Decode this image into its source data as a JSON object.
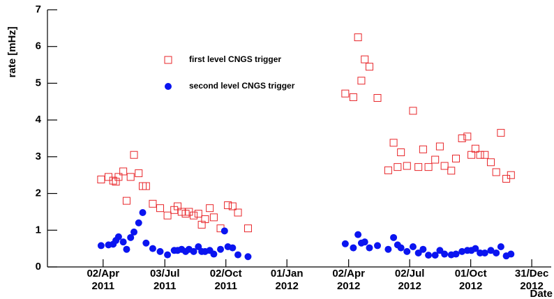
{
  "chart_data": {
    "type": "scatter",
    "ylabel": "rate [mHz]",
    "xlabel": "Date",
    "x": [
      "2011-03-30",
      "2011-04-10",
      "2011-04-17",
      "2011-04-21",
      "2011-04-25",
      "2011-05-02",
      "2011-05-07",
      "2011-05-13",
      "2011-05-18",
      "2011-05-25",
      "2011-05-31",
      "2011-06-05",
      "2011-06-15",
      "2011-06-26",
      "2011-07-07",
      "2011-07-17",
      "2011-07-22",
      "2011-07-28",
      "2011-08-03",
      "2011-08-08",
      "2011-08-15",
      "2011-08-22",
      "2011-08-27",
      "2011-09-01",
      "2011-09-08",
      "2011-09-14",
      "2011-09-24",
      "2011-09-30",
      "2011-10-05",
      "2011-10-12",
      "2011-10-20",
      "2011-11-04",
      "2012-03-28",
      "2012-04-09",
      "2012-04-16",
      "2012-04-21",
      "2012-04-26",
      "2012-05-03",
      "2012-05-15",
      "2012-05-31",
      "2012-06-08",
      "2012-06-14",
      "2012-06-19",
      "2012-06-28",
      "2012-07-07",
      "2012-07-15",
      "2012-07-22",
      "2012-07-30",
      "2012-08-09",
      "2012-08-16",
      "2012-08-23",
      "2012-09-02",
      "2012-09-09",
      "2012-09-18",
      "2012-09-26",
      "2012-10-02",
      "2012-10-08",
      "2012-10-15",
      "2012-10-22",
      "2012-10-31",
      "2012-11-08",
      "2012-11-15",
      "2012-11-23",
      "2012-11-30"
    ],
    "series": [
      {
        "name": "first level CNGS trigger",
        "color": "#e8262a",
        "marker": "square-open",
        "values": [
          2.38,
          2.45,
          2.35,
          2.32,
          2.45,
          2.6,
          1.8,
          2.45,
          3.05,
          2.55,
          2.2,
          2.2,
          1.72,
          1.6,
          1.4,
          1.55,
          1.65,
          1.5,
          1.45,
          1.5,
          1.4,
          1.45,
          1.15,
          1.3,
          1.6,
          1.35,
          1.05,
          null,
          1.68,
          1.65,
          1.48,
          1.05,
          4.72,
          4.62,
          6.25,
          5.07,
          5.65,
          5.45,
          4.6,
          2.63,
          3.38,
          2.72,
          3.12,
          2.75,
          4.25,
          2.72,
          3.2,
          2.72,
          2.92,
          3.28,
          2.75,
          2.62,
          2.95,
          3.5,
          3.55,
          3.05,
          3.22,
          3.05,
          3.05,
          2.85,
          2.58,
          3.65,
          2.4,
          2.5
        ]
      },
      {
        "name": "second level CNGS trigger",
        "color": "#0a14f0",
        "marker": "circle",
        "values": [
          0.58,
          0.6,
          0.62,
          0.72,
          0.82,
          0.68,
          0.48,
          0.8,
          0.95,
          1.2,
          1.48,
          0.65,
          0.5,
          0.42,
          0.33,
          0.45,
          0.45,
          0.48,
          0.42,
          0.48,
          0.42,
          0.55,
          0.42,
          0.42,
          0.45,
          0.35,
          0.48,
          0.98,
          0.55,
          0.52,
          0.33,
          0.28,
          0.63,
          0.52,
          0.88,
          0.65,
          0.68,
          0.52,
          0.58,
          0.48,
          0.8,
          0.6,
          0.52,
          0.42,
          0.55,
          0.38,
          0.48,
          0.32,
          0.32,
          0.45,
          0.35,
          0.33,
          0.35,
          0.42,
          0.45,
          0.45,
          0.5,
          0.38,
          0.38,
          0.45,
          0.38,
          0.55,
          0.3,
          0.35
        ]
      }
    ],
    "xlim": [
      "2011-01-09",
      "2013-01-29"
    ],
    "xticks": [
      {
        "value": "2011-04-02",
        "label": [
          "02/Apr",
          "2011"
        ]
      },
      {
        "value": "2011-07-03",
        "label": [
          "03/Jul",
          "2011"
        ]
      },
      {
        "value": "2011-10-02",
        "label": [
          "02/Oct",
          "2011"
        ]
      },
      {
        "value": "2012-01-01",
        "label": [
          "01/Jan",
          "2012"
        ]
      },
      {
        "value": "2012-04-02",
        "label": [
          "02/Apr",
          "2012"
        ]
      },
      {
        "value": "2012-07-02",
        "label": [
          "02/Jul",
          "2012"
        ]
      },
      {
        "value": "2012-10-01",
        "label": [
          "01/Oct",
          "2012"
        ]
      },
      {
        "value": "2012-12-31",
        "label": [
          "31/Dec",
          "2012"
        ]
      }
    ],
    "ylim": [
      0,
      7
    ],
    "yticks": [
      0,
      1,
      2,
      3,
      4,
      5,
      6,
      7
    ],
    "grid": false,
    "legend": "upper left"
  }
}
